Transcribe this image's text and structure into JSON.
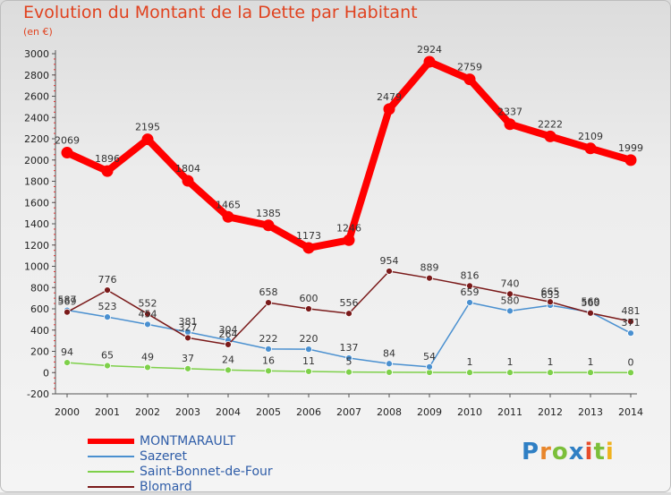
{
  "title": "Evolution du Montant de la Dette par Habitant",
  "subtitle": "(en €)",
  "logo_text": "Proxiti",
  "chart_data": {
    "type": "line",
    "title": "Evolution du Montant de la Dette par Habitant",
    "subtitle": "(en €)",
    "xlabel": "",
    "ylabel": "",
    "x": [
      "2000",
      "2001",
      "2002",
      "2003",
      "2004",
      "2005",
      "2006",
      "2007",
      "2008",
      "2009",
      "2010",
      "2011",
      "2012",
      "2013",
      "2014"
    ],
    "ylim": [
      -200,
      3000
    ],
    "yticks": [
      "-200",
      "0",
      "200",
      "400",
      "600",
      "800",
      "1000",
      "1200",
      "1400",
      "1600",
      "1800",
      "2000",
      "2200",
      "2400",
      "2600",
      "2800",
      "3000"
    ],
    "grid": false,
    "legend": "bottom-left",
    "series": [
      {
        "name": "MONTMARAULT",
        "color": "#ff0000",
        "values": [
          2069,
          1896,
          2195,
          1804,
          1465,
          1385,
          1173,
          1246,
          2479,
          2924,
          2759,
          2337,
          2222,
          2109,
          1999
        ],
        "labels": [
          "2069",
          "1896",
          "2195",
          "1804",
          "1465",
          "1385",
          "1173",
          "1246",
          "2479",
          "2924",
          "2759",
          "2337",
          "2222",
          "2109",
          "1999"
        ]
      },
      {
        "name": "Sazeret",
        "color": "#4a90d0",
        "values": [
          587,
          523,
          454,
          381,
          304,
          222,
          220,
          137,
          84,
          54,
          659,
          580,
          633,
          569,
          371
        ],
        "labels": [
          "587",
          "523",
          "454",
          "381",
          "304",
          "222",
          "220",
          "137",
          "84",
          "54",
          "659",
          "580",
          "633",
          "569",
          "371"
        ]
      },
      {
        "name": "Saint-Bonnet-de-Four",
        "color": "#7ed04a",
        "values": [
          94,
          65,
          49,
          37,
          24,
          16,
          11,
          5,
          3,
          2,
          1,
          1,
          1,
          1,
          0
        ],
        "labels": [
          "94",
          "65",
          "49",
          "37",
          "24",
          "16",
          "11",
          "5",
          "",
          "",
          "1",
          "1",
          "1",
          "1",
          "0"
        ]
      },
      {
        "name": "Blomard",
        "color": "#7a1a1a",
        "values": [
          569,
          776,
          552,
          327,
          264,
          658,
          600,
          556,
          954,
          889,
          816,
          740,
          665,
          560,
          481
        ],
        "labels": [
          "569",
          "776",
          "552",
          "327",
          "264",
          "658",
          "600",
          "556",
          "954",
          "889",
          "816",
          "740",
          "665",
          "560",
          "481"
        ]
      }
    ]
  }
}
